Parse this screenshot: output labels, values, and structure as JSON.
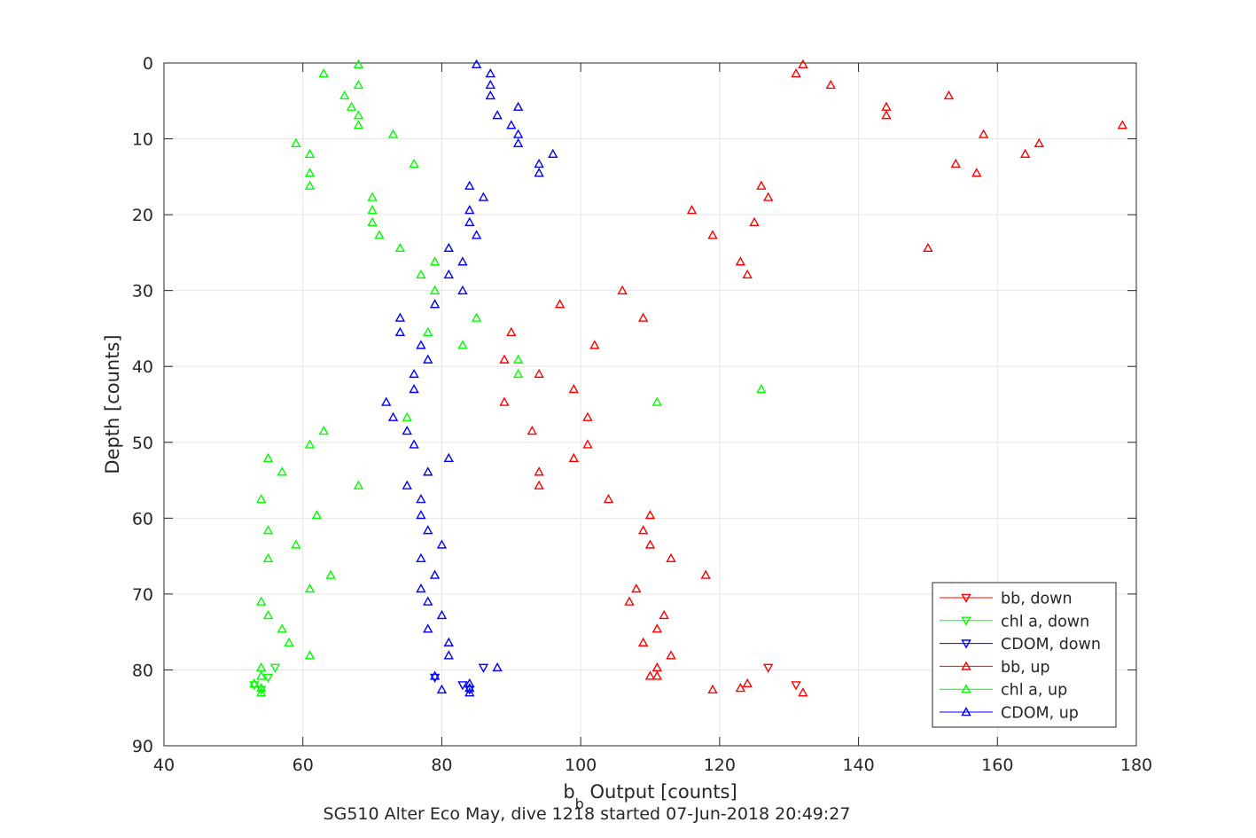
{
  "chart_data": {
    "type": "scatter",
    "title": "",
    "xlabel_base": "b",
    "xlabel_sub": "b",
    "xlabel_rest": " Output [counts]",
    "ylabel": "Depth [counts]",
    "caption": "SG510 Alter Eco May, dive 1218 started 07-Jun-2018 20:49:27",
    "xlim": [
      40,
      180
    ],
    "ylim": [
      0,
      90
    ],
    "y_reversed": true,
    "xticks": [
      40,
      60,
      80,
      100,
      120,
      140,
      160,
      180
    ],
    "yticks": [
      0,
      10,
      20,
      30,
      40,
      50,
      60,
      70,
      80,
      90
    ],
    "grid": true,
    "legend_position": "bottom-right",
    "series": [
      {
        "name": "bb, down",
        "color": "#ff0000",
        "marker": "triangle-down",
        "points": [
          [
            127,
            79.7
          ],
          [
            131,
            82
          ]
        ]
      },
      {
        "name": "chl a, down",
        "color": "#00ff00",
        "marker": "triangle-down",
        "points": [
          [
            56,
            79.7
          ],
          [
            55,
            81
          ],
          [
            53,
            82
          ],
          [
            54,
            82.6
          ]
        ]
      },
      {
        "name": "CDOM, down",
        "color": "#0000ff",
        "marker": "triangle-down",
        "points": [
          [
            86,
            79.7
          ],
          [
            79,
            81
          ],
          [
            83,
            82
          ],
          [
            84,
            82.6
          ]
        ]
      },
      {
        "name": "bb, up",
        "color": "#ff0000",
        "marker": "triangle-up",
        "points": [
          [
            132,
            0.2
          ],
          [
            131,
            1.4
          ],
          [
            136,
            2.9
          ],
          [
            153,
            4.3
          ],
          [
            144,
            5.8
          ],
          [
            144,
            6.9
          ],
          [
            178,
            8.2
          ],
          [
            158,
            9.4
          ],
          [
            166,
            10.6
          ],
          [
            164,
            12
          ],
          [
            154,
            13.3
          ],
          [
            157,
            14.5
          ],
          [
            126,
            16.2
          ],
          [
            127,
            17.7
          ],
          [
            116,
            19.4
          ],
          [
            125,
            21
          ],
          [
            119,
            22.7
          ],
          [
            150,
            24.4
          ],
          [
            123,
            26.2
          ],
          [
            124,
            27.9
          ],
          [
            106,
            30
          ],
          [
            97,
            31.8
          ],
          [
            109,
            33.6
          ],
          [
            90,
            35.5
          ],
          [
            102,
            37.2
          ],
          [
            89,
            39.1
          ],
          [
            94,
            41
          ],
          [
            99,
            43
          ],
          [
            89,
            44.7
          ],
          [
            101,
            46.7
          ],
          [
            93,
            48.5
          ],
          [
            101,
            50.3
          ],
          [
            99,
            52.1
          ],
          [
            94,
            53.9
          ],
          [
            94,
            55.7
          ],
          [
            104,
            57.5
          ],
          [
            110,
            59.6
          ],
          [
            109,
            61.6
          ],
          [
            110,
            63.5
          ],
          [
            113,
            65.3
          ],
          [
            118,
            67.5
          ],
          [
            108,
            69.3
          ],
          [
            107,
            71
          ],
          [
            112,
            72.8
          ],
          [
            111,
            74.6
          ],
          [
            109,
            76.4
          ],
          [
            113,
            78.1
          ],
          [
            111,
            79.7
          ],
          [
            110,
            80.8
          ],
          [
            111,
            80.8
          ],
          [
            124,
            81.8
          ],
          [
            123,
            82.4
          ],
          [
            119,
            82.6
          ],
          [
            132,
            83
          ]
        ]
      },
      {
        "name": "chl a, up",
        "color": "#00ff00",
        "marker": "triangle-up",
        "points": [
          [
            68,
            0.2
          ],
          [
            63,
            1.4
          ],
          [
            68,
            2.9
          ],
          [
            66,
            4.3
          ],
          [
            67,
            5.8
          ],
          [
            68,
            6.9
          ],
          [
            68,
            8.2
          ],
          [
            73,
            9.4
          ],
          [
            59,
            10.6
          ],
          [
            61,
            12
          ],
          [
            76,
            13.3
          ],
          [
            61,
            14.5
          ],
          [
            61,
            16.2
          ],
          [
            70,
            17.7
          ],
          [
            70,
            19.4
          ],
          [
            70,
            21
          ],
          [
            71,
            22.7
          ],
          [
            74,
            24.4
          ],
          [
            79,
            26.2
          ],
          [
            77,
            27.9
          ],
          [
            79,
            30
          ],
          [
            79,
            31.8
          ],
          [
            85,
            33.6
          ],
          [
            78,
            35.5
          ],
          [
            83,
            37.2
          ],
          [
            91,
            39.1
          ],
          [
            91,
            41
          ],
          [
            126,
            43
          ],
          [
            111,
            44.7
          ],
          [
            75,
            46.7
          ],
          [
            63,
            48.5
          ],
          [
            61,
            50.3
          ],
          [
            55,
            52.1
          ],
          [
            57,
            53.9
          ],
          [
            68,
            55.7
          ],
          [
            54,
            57.5
          ],
          [
            62,
            59.6
          ],
          [
            55,
            61.6
          ],
          [
            59,
            63.5
          ],
          [
            55,
            65.3
          ],
          [
            64,
            67.5
          ],
          [
            61,
            69.3
          ],
          [
            54,
            71
          ],
          [
            55,
            72.8
          ],
          [
            57,
            74.6
          ],
          [
            58,
            76.4
          ],
          [
            61,
            78.1
          ],
          [
            54,
            79.7
          ],
          [
            54,
            80.8
          ],
          [
            53,
            81.8
          ],
          [
            54,
            82.4
          ],
          [
            54,
            83
          ]
        ]
      },
      {
        "name": "CDOM, up",
        "color": "#0000ff",
        "marker": "triangle-up",
        "points": [
          [
            85,
            0.2
          ],
          [
            87,
            1.4
          ],
          [
            87,
            2.9
          ],
          [
            87,
            4.3
          ],
          [
            91,
            5.8
          ],
          [
            88,
            6.9
          ],
          [
            90,
            8.2
          ],
          [
            91,
            9.4
          ],
          [
            91,
            10.6
          ],
          [
            96,
            12
          ],
          [
            94,
            13.3
          ],
          [
            94,
            14.5
          ],
          [
            84,
            16.2
          ],
          [
            86,
            17.7
          ],
          [
            84,
            19.4
          ],
          [
            84,
            21
          ],
          [
            85,
            22.7
          ],
          [
            81,
            24.4
          ],
          [
            83,
            26.2
          ],
          [
            81,
            27.9
          ],
          [
            83,
            30
          ],
          [
            79,
            31.8
          ],
          [
            74,
            33.6
          ],
          [
            74,
            35.5
          ],
          [
            77,
            37.2
          ],
          [
            78,
            39.1
          ],
          [
            76,
            41
          ],
          [
            76,
            43
          ],
          [
            72,
            44.7
          ],
          [
            73,
            46.7
          ],
          [
            75,
            48.5
          ],
          [
            76,
            50.3
          ],
          [
            81,
            52.1
          ],
          [
            78,
            53.9
          ],
          [
            75,
            55.7
          ],
          [
            77,
            57.5
          ],
          [
            77,
            59.6
          ],
          [
            78,
            61.6
          ],
          [
            80,
            63.5
          ],
          [
            77,
            65.3
          ],
          [
            79,
            67.5
          ],
          [
            77,
            69.3
          ],
          [
            78,
            71
          ],
          [
            80,
            72.8
          ],
          [
            78,
            74.6
          ],
          [
            81,
            76.4
          ],
          [
            81,
            78.1
          ],
          [
            88,
            79.7
          ],
          [
            79,
            80.8
          ],
          [
            84,
            81.8
          ],
          [
            84,
            82.4
          ],
          [
            80,
            82.6
          ],
          [
            84,
            83
          ]
        ]
      }
    ]
  }
}
